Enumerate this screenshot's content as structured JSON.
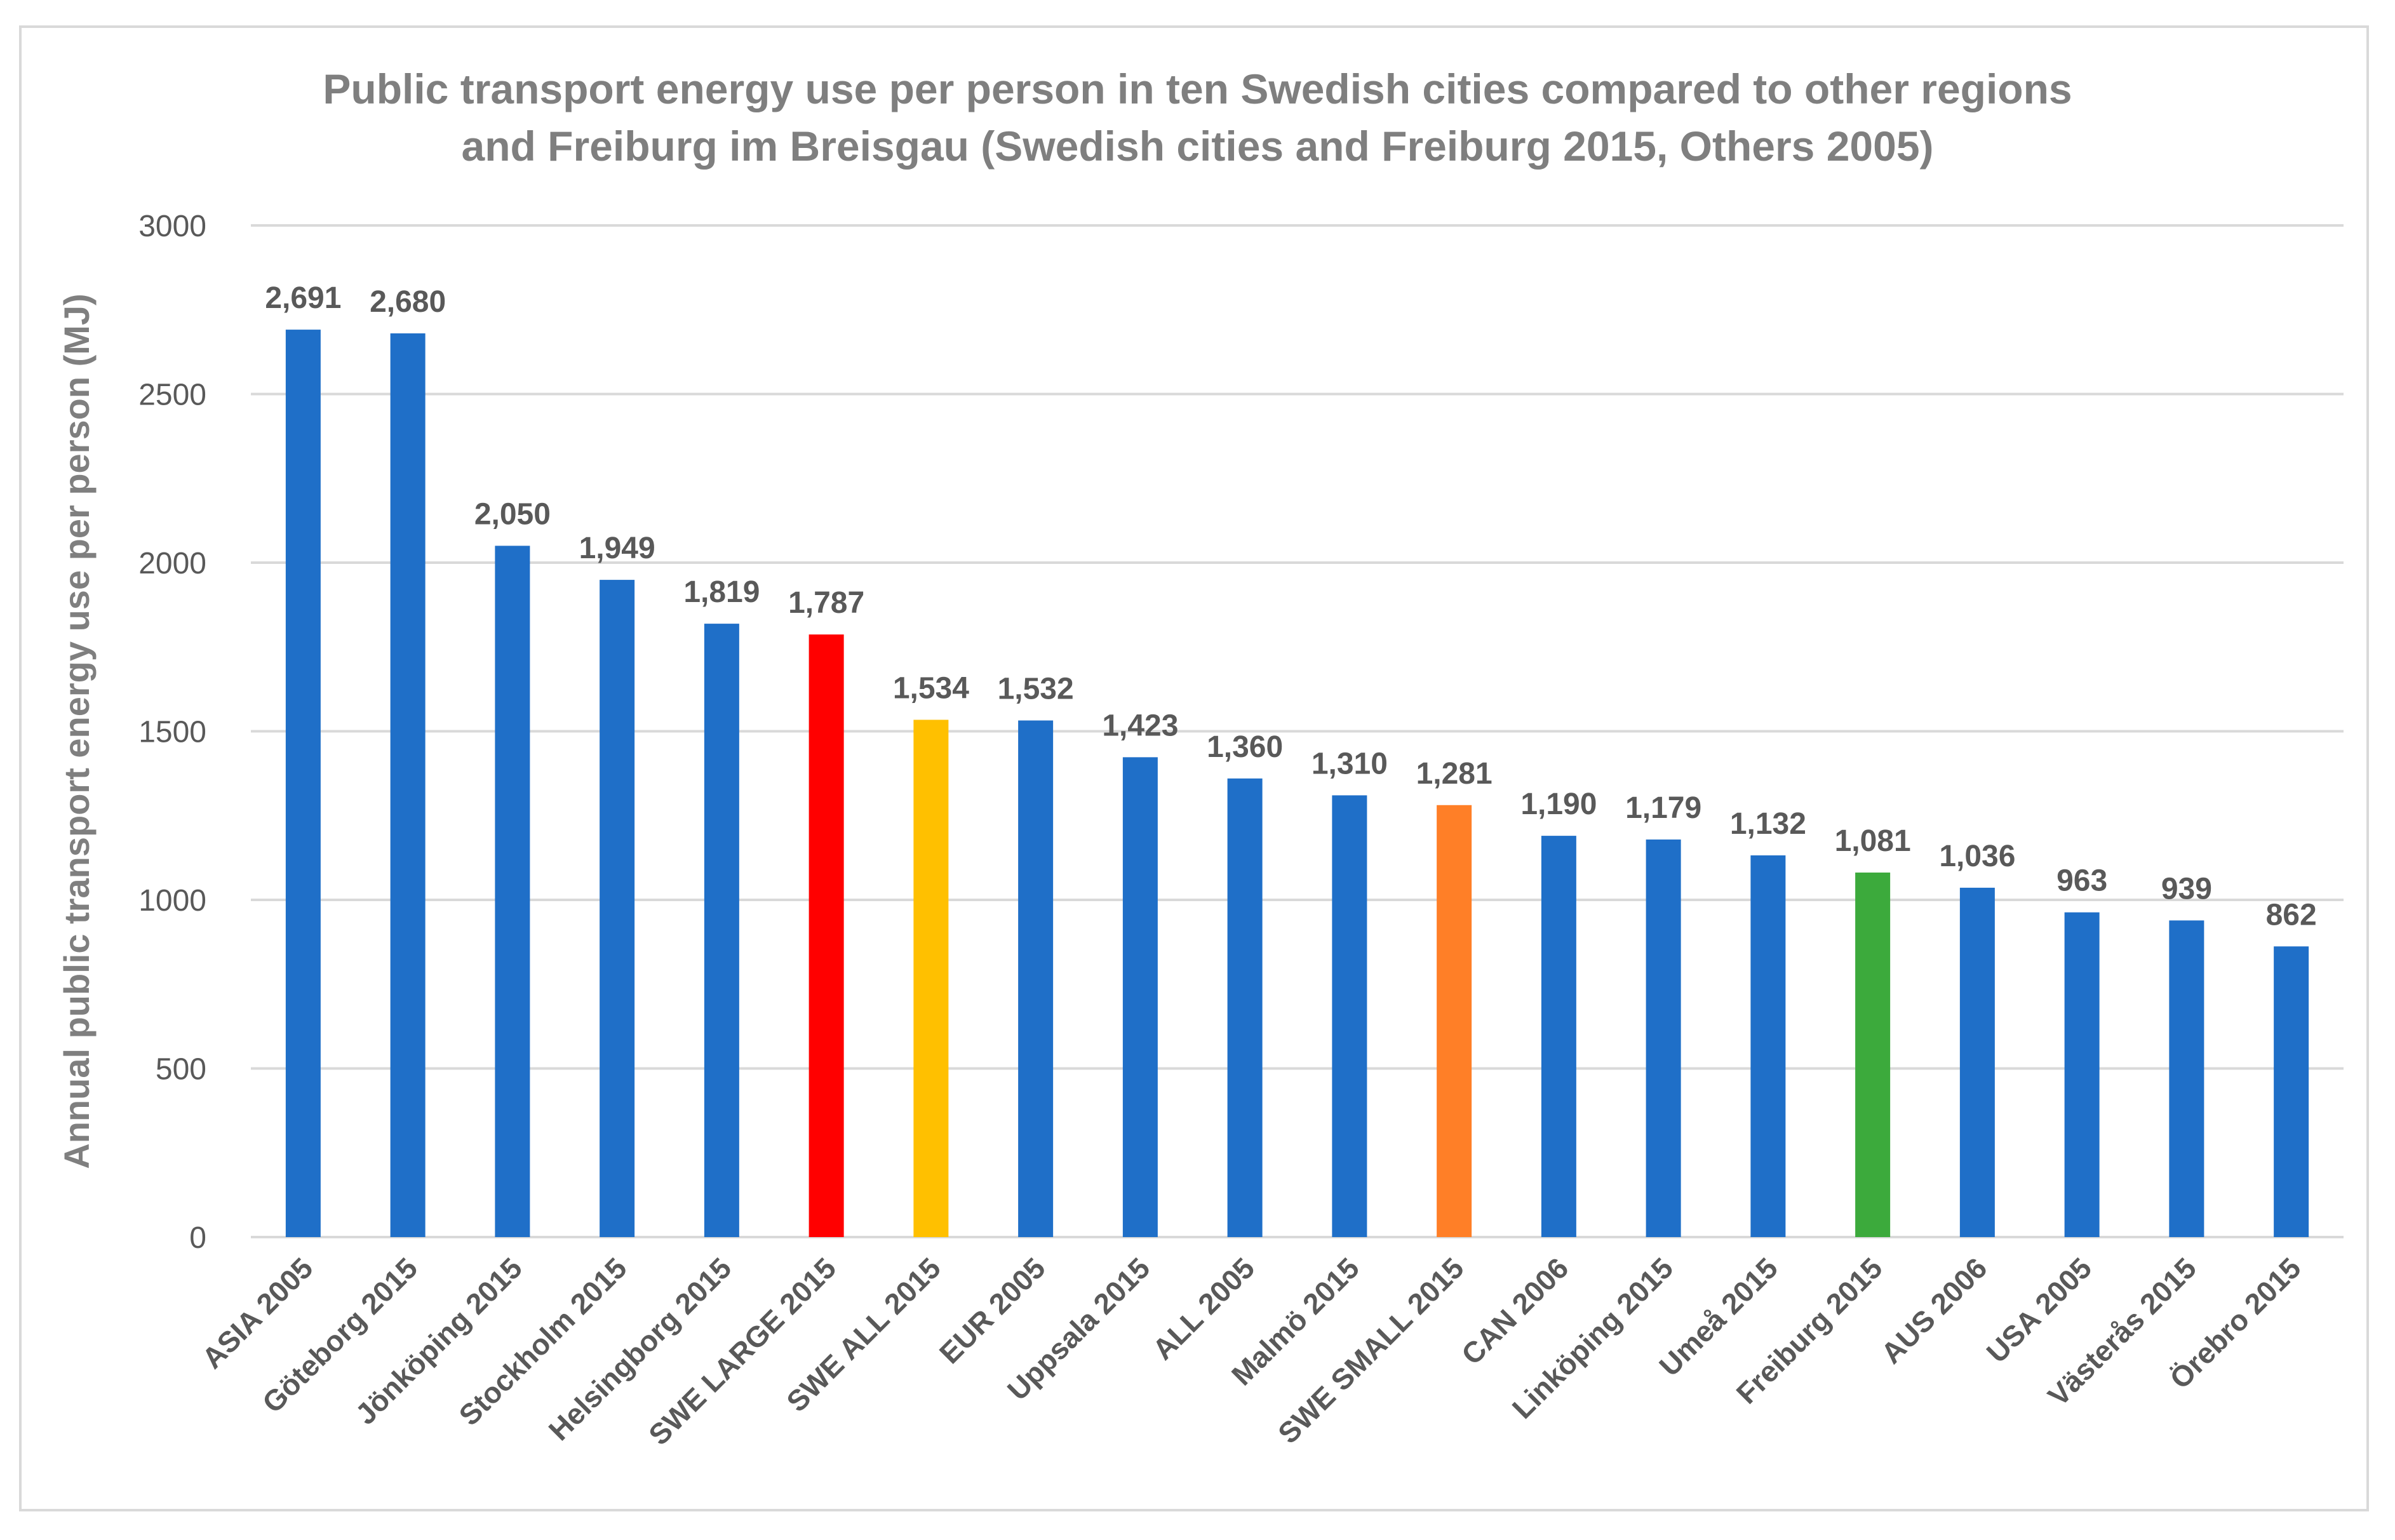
{
  "chart_data": {
    "type": "bar",
    "title_line1": "Public transport energy use per person in ten Swedish cities compared to other regions",
    "title_line2": "and Freiburg im Breisgau (Swedish cities and Freiburg 2015, Others 2005)",
    "xlabel": "",
    "ylabel": "Annual public transport energy use per person (MJ)",
    "ylim": [
      0,
      3000
    ],
    "yticks": [
      0,
      500,
      1000,
      1500,
      2000,
      2500,
      3000
    ],
    "grid": true,
    "legend": "none",
    "categories": [
      "ASIA 2005",
      "Göteborg 2015",
      "Jönköping 2015",
      "Stockholm 2015",
      "Helsingborg 2015",
      "SWE LARGE 2015",
      "SWE ALL 2015",
      "EUR 2005",
      "Uppsala 2015",
      "ALL 2005",
      "Malmö 2015",
      "SWE SMALL 2015",
      "CAN 2006",
      "Linköping 2015",
      "Umeå 2015",
      "Freiburg 2015",
      "AUS 2006",
      "USA 2005",
      "Västerås 2015",
      "Örebro 2015"
    ],
    "values": [
      2691,
      2680,
      2050,
      1949,
      1819,
      1787,
      1534,
      1532,
      1423,
      1360,
      1310,
      1281,
      1190,
      1179,
      1132,
      1081,
      1036,
      963,
      939,
      862
    ],
    "value_labels": [
      "2,691",
      "2,680",
      "2,050",
      "1,949",
      "1,819",
      "1,787",
      "1,534",
      "1,532",
      "1,423",
      "1,360",
      "1,310",
      "1,281",
      "1,190",
      "1,179",
      "1,132",
      "1,081",
      "1,036",
      "963",
      "939",
      "862"
    ],
    "colors": [
      "#1f6fc8",
      "#1f6fc8",
      "#1f6fc8",
      "#1f6fc8",
      "#1f6fc8",
      "#ff0000",
      "#ffc000",
      "#1f6fc8",
      "#1f6fc8",
      "#1f6fc8",
      "#1f6fc8",
      "#ff7f27",
      "#1f6fc8",
      "#1f6fc8",
      "#1f6fc8",
      "#3caa3c",
      "#1f6fc8",
      "#1f6fc8",
      "#1f6fc8",
      "#1f6fc8"
    ]
  }
}
